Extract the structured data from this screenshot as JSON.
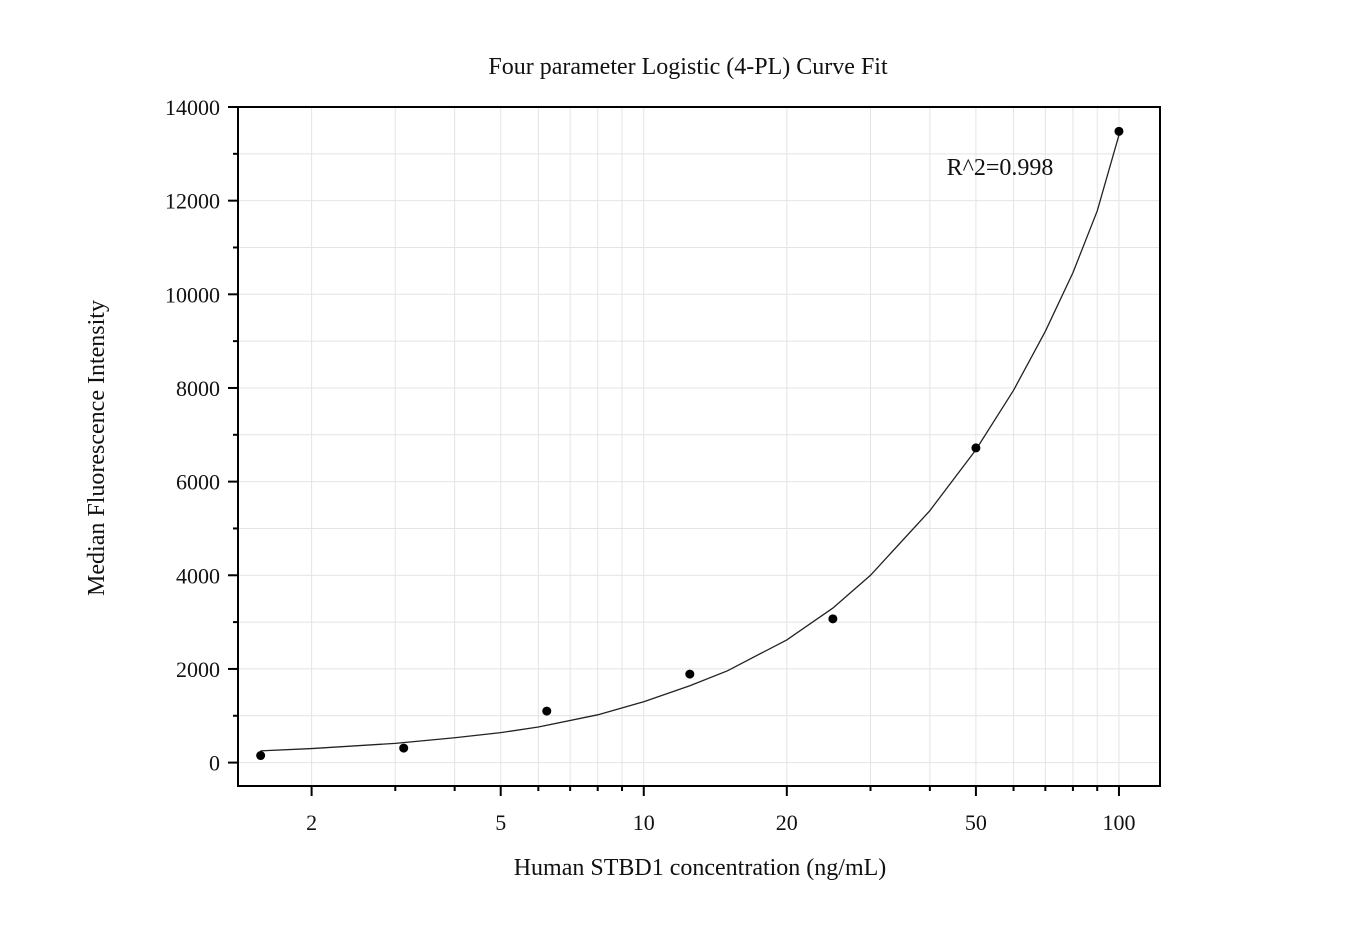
{
  "chart_data": {
    "type": "scatter",
    "title": "Four parameter Logistic (4-PL) Curve Fit",
    "xlabel": "Human STBD1 concentration (ng/mL)",
    "ylabel": "Median Fluorescence Intensity",
    "x_scale": "log",
    "xlim": [
      1.4,
      122
    ],
    "ylim": [
      -500,
      14000
    ],
    "x_ticks": [
      2,
      5,
      10,
      20,
      50,
      100
    ],
    "x_tick_labels": [
      "2",
      "5",
      "10",
      "20",
      "50",
      "100"
    ],
    "y_ticks": [
      0,
      2000,
      4000,
      6000,
      8000,
      10000,
      12000,
      14000
    ],
    "y_tick_labels": [
      "0",
      "2000",
      "4000",
      "6000",
      "8000",
      "10000",
      "12000",
      "14000"
    ],
    "grid": true,
    "legend": "none",
    "annotation": "R^2=0.998",
    "series": [
      {
        "style": "points",
        "x": [
          1.5625,
          3.125,
          6.25,
          12.5,
          25,
          50,
          100
        ],
        "y": [
          150,
          310,
          1100,
          1890,
          3070,
          6720,
          13480
        ]
      },
      {
        "style": "fit-curve",
        "x": [
          1.56,
          2,
          3,
          4,
          5,
          6,
          8,
          10,
          12.5,
          15,
          20,
          25,
          30,
          40,
          50,
          60,
          70,
          80,
          90,
          100
        ],
        "y": [
          250,
          300,
          410,
          530,
          640,
          760,
          1020,
          1300,
          1640,
          1960,
          2620,
          3300,
          4000,
          5380,
          6680,
          7950,
          9210,
          10460,
          11780,
          13400
        ]
      }
    ],
    "colors": {
      "points": "#000000",
      "curve": "#222222",
      "grid": "#e4e4e4",
      "axes": "#000000"
    }
  }
}
